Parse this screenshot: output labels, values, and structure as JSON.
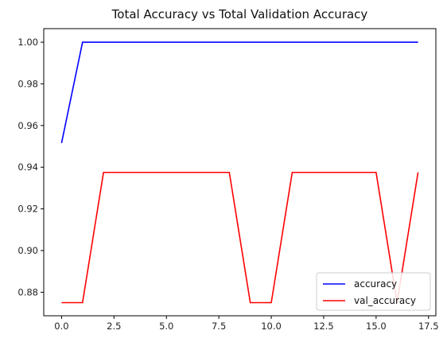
{
  "chart_data": {
    "type": "line",
    "title": "Total Accuracy vs Total Validation Accuracy",
    "xlabel": "",
    "ylabel": "",
    "xlim": [
      -0.85,
      17.85
    ],
    "ylim": [
      0.8687,
      1.0065
    ],
    "xticks": [
      0.0,
      2.5,
      5.0,
      7.5,
      10.0,
      12.5,
      15.0,
      17.5
    ],
    "xtick_labels": [
      "0.0",
      "2.5",
      "5.0",
      "7.5",
      "10.0",
      "12.5",
      "15.0",
      "17.5"
    ],
    "yticks": [
      0.88,
      0.9,
      0.92,
      0.94,
      0.96,
      0.98,
      1.0
    ],
    "ytick_labels": [
      "0.88",
      "0.90",
      "0.92",
      "0.94",
      "0.96",
      "0.98",
      "1.00"
    ],
    "grid": false,
    "legend_position": "lower-right",
    "x": [
      0,
      1,
      2,
      3,
      4,
      5,
      6,
      7,
      8,
      9,
      10,
      11,
      12,
      13,
      14,
      15,
      16,
      17
    ],
    "series": [
      {
        "name": "accuracy",
        "color": "#0000ff",
        "values": [
          0.9516,
          1.0,
          1.0,
          1.0,
          1.0,
          1.0,
          1.0,
          1.0,
          1.0,
          1.0,
          1.0,
          1.0,
          1.0,
          1.0,
          1.0,
          1.0,
          1.0,
          1.0
        ]
      },
      {
        "name": "val_accuracy",
        "color": "#ff0000",
        "values": [
          0.875,
          0.875,
          0.9375,
          0.9375,
          0.9375,
          0.9375,
          0.9375,
          0.9375,
          0.9375,
          0.875,
          0.875,
          0.9375,
          0.9375,
          0.9375,
          0.9375,
          0.9375,
          0.875,
          0.9375
        ]
      }
    ]
  }
}
